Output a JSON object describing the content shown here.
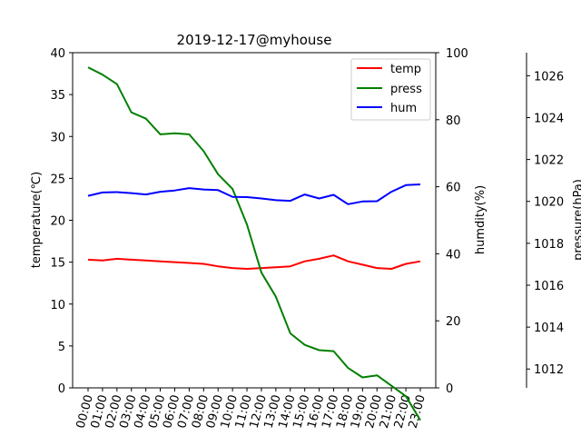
{
  "chart_data": {
    "type": "line",
    "title": "2019-12-17@myhouse",
    "x": [
      "00:00",
      "01:00",
      "02:00",
      "03:00",
      "04:00",
      "05:00",
      "06:00",
      "07:00",
      "08:00",
      "09:00",
      "10:00",
      "11:00",
      "12:00",
      "13:00",
      "14:00",
      "15:00",
      "16:00",
      "17:00",
      "18:00",
      "19:00",
      "20:00",
      "21:00",
      "22:00",
      "23:00"
    ],
    "axes": {
      "left": {
        "label": "temperature(℃)",
        "ylim": [
          0,
          40
        ],
        "ticks": [
          0,
          5,
          10,
          15,
          20,
          25,
          30,
          35,
          40
        ]
      },
      "right": {
        "label": "humdity(%)",
        "ylim": [
          0,
          100
        ],
        "ticks": [
          0,
          20,
          40,
          60,
          80,
          100
        ]
      },
      "far_right": {
        "label": "pressure(hPa)",
        "ylim": [
          1011.1,
          1027.1
        ],
        "ticks": [
          1012,
          1014,
          1016,
          1018,
          1020,
          1022,
          1024,
          1026
        ]
      }
    },
    "series": [
      {
        "name": "temp",
        "axis": "left",
        "color": "#ff0000",
        "values": [
          15.3,
          15.2,
          15.4,
          15.3,
          15.2,
          15.1,
          15.0,
          14.9,
          14.8,
          14.5,
          14.3,
          14.2,
          14.3,
          14.4,
          14.5,
          15.1,
          15.4,
          15.8,
          15.1,
          14.7,
          14.3,
          14.2,
          14.8,
          15.1
        ]
      },
      {
        "name": "press",
        "axis": "far_right",
        "color": "#008000",
        "values": [
          1026.4,
          1026.05,
          1025.6,
          1024.25,
          1023.95,
          1023.2,
          1023.25,
          1023.2,
          1022.4,
          1021.3,
          1020.6,
          1018.9,
          1016.6,
          1015.45,
          1013.7,
          1013.15,
          1012.9,
          1012.85,
          1012.05,
          1011.6,
          1011.7,
          1011.2,
          1010.7,
          1009.55
        ]
      },
      {
        "name": "hum",
        "axis": "right",
        "color": "#0000ff",
        "values": [
          57.3,
          58.3,
          58.4,
          58.1,
          57.7,
          58.5,
          58.9,
          59.6,
          59.2,
          59.0,
          57.0,
          56.9,
          56.5,
          56.0,
          55.8,
          57.7,
          56.5,
          57.6,
          54.8,
          55.6,
          55.7,
          58.5,
          60.5,
          60.7
        ]
      }
    ],
    "legend": {
      "placement": "top-right"
    },
    "grid": false
  }
}
